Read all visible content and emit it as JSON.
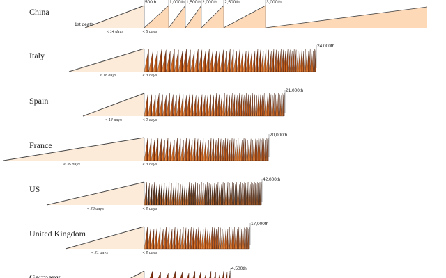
{
  "rows": [
    {
      "country": "China",
      "first_label": "1st death",
      "gap1": "< 14 days",
      "gap2": "< 5 days",
      "milestones": [
        "500th",
        "1,000th",
        "1,500th",
        "2,000th",
        "2,500th",
        "3,000th"
      ]
    },
    {
      "country": "Italy",
      "gap1": "< 18 days",
      "gap2": "< 3 days",
      "end_label": "24,000th"
    },
    {
      "country": "Spain",
      "gap1": "< 14 days",
      "gap2": "< 2 days",
      "end_label": "21,000th"
    },
    {
      "country": "France",
      "gap1": "< 35 days",
      "gap2": "< 3 days",
      "end_label": "20,000th"
    },
    {
      "country": "US",
      "gap1": "< 23 days",
      "gap2": "< 2 days",
      "end_label": "42,000th"
    },
    {
      "country": "United Kingdom",
      "gap1": "< 21 days",
      "gap2": "< 2 days",
      "end_label": "17,000th"
    },
    {
      "country": "Germany",
      "end_label": "4,500th"
    }
  ]
}
